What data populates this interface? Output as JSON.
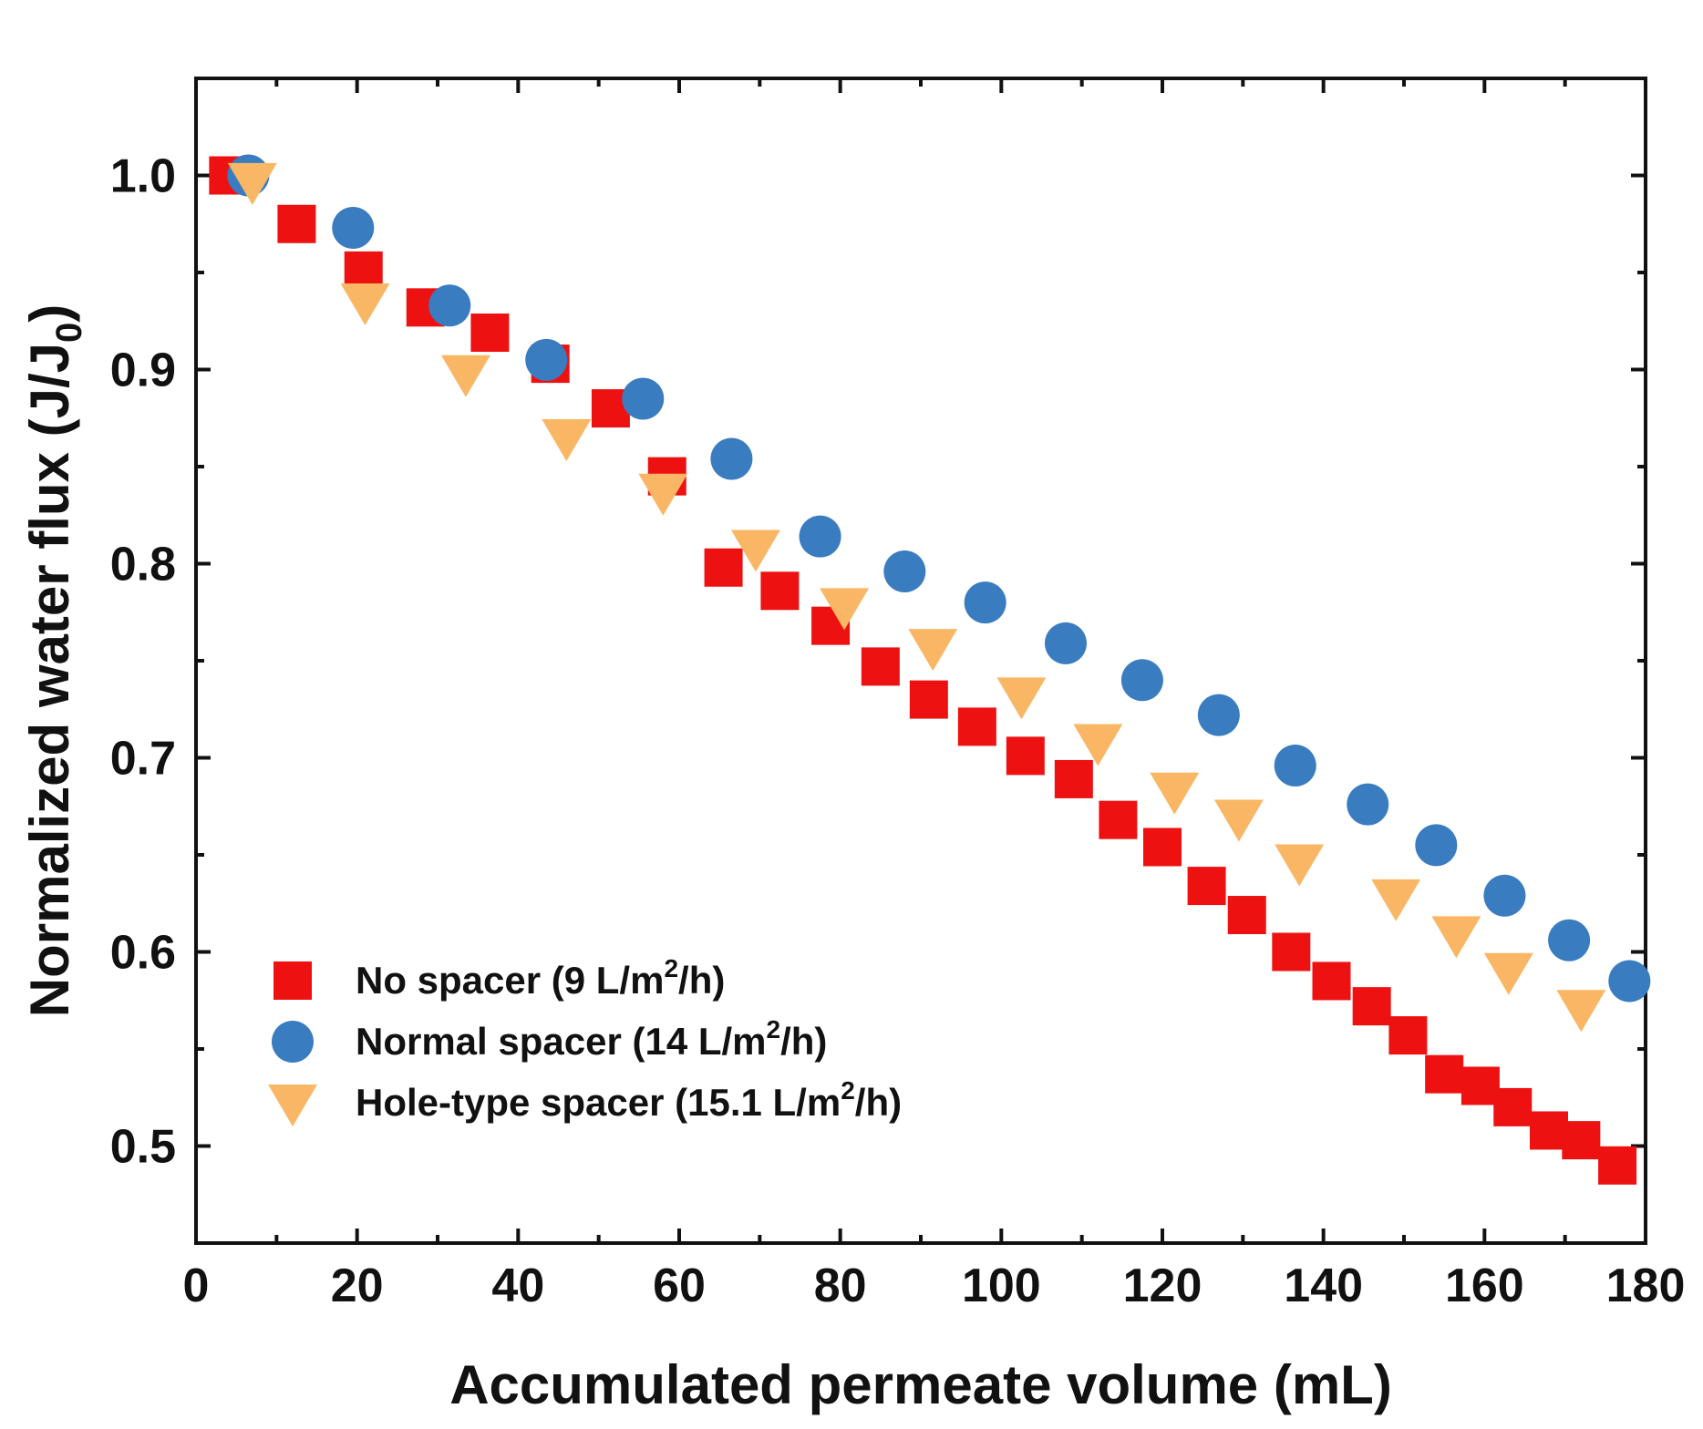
{
  "chart_data": {
    "type": "scatter",
    "xlabel": "Accumulated permeate volume (mL)",
    "ylabel": {
      "main": "Normalized water flux (J/J",
      "sub": "0",
      "close": ")"
    },
    "xlim": [
      0,
      180
    ],
    "ylim": [
      0.45,
      1.05
    ],
    "xticks": [
      0,
      20,
      40,
      60,
      80,
      100,
      120,
      140,
      160,
      180
    ],
    "xtick_labels": [
      "0",
      "20",
      "40",
      "60",
      "80",
      "100",
      "120",
      "140",
      "160",
      "180"
    ],
    "yticks": [
      0.5,
      0.6,
      0.7,
      0.8,
      0.9,
      1.0
    ],
    "ytick_labels": [
      "0.5",
      "0.6",
      "0.7",
      "0.8",
      "0.9",
      "1.0"
    ],
    "grid": false,
    "legend_position": "bottom-left",
    "series": [
      {
        "name": "No spacer (9 L/m²/h)",
        "legend": {
          "pre": "No spacer (9 L/m",
          "sup": "2",
          "post": "/h)"
        },
        "marker": "square",
        "color": "#ee1111",
        "x": [
          4,
          12.5,
          20.8,
          28.5,
          36.5,
          44,
          51.5,
          58.5,
          65.5,
          72.5,
          78.8,
          85,
          91,
          97,
          103,
          109,
          114.5,
          120,
          125.5,
          130.5,
          136,
          141,
          146,
          150.5,
          155,
          159.5,
          163.5,
          168,
          172,
          176.5
        ],
        "y": [
          1.0,
          0.975,
          0.951,
          0.932,
          0.919,
          0.903,
          0.88,
          0.845,
          0.798,
          0.786,
          0.768,
          0.747,
          0.73,
          0.716,
          0.701,
          0.689,
          0.668,
          0.654,
          0.634,
          0.619,
          0.6,
          0.585,
          0.572,
          0.557,
          0.537,
          0.531,
          0.52,
          0.508,
          0.503,
          0.49
        ]
      },
      {
        "name": "Normal spacer (14 L/m²/h)",
        "legend": {
          "pre": "Normal spacer (14 L/m",
          "sup": "2",
          "post": "/h)"
        },
        "marker": "circle",
        "color": "#3a7cc0",
        "x": [
          6.5,
          19.5,
          31.5,
          43.5,
          55.5,
          66.5,
          77.5,
          88,
          98,
          108,
          117.5,
          127,
          136.5,
          145.5,
          154,
          162.5,
          170.5,
          178
        ],
        "y": [
          1.0,
          0.973,
          0.933,
          0.905,
          0.885,
          0.854,
          0.814,
          0.796,
          0.78,
          0.759,
          0.74,
          0.722,
          0.696,
          0.676,
          0.655,
          0.629,
          0.606,
          0.585
        ]
      },
      {
        "name": "Hole-type spacer (15.1 L/m²/h)",
        "legend": {
          "pre": "Hole-type spacer (15.1 L/m",
          "sup": "2",
          "post": "/h)"
        },
        "marker": "triangle-down",
        "color": "#f9b765",
        "x": [
          7,
          21,
          33.5,
          46,
          58,
          69.5,
          80.5,
          91.5,
          102.5,
          112,
          121.5,
          129.5,
          137,
          149,
          156.5,
          163,
          172
        ],
        "y": [
          0.997,
          0.935,
          0.898,
          0.865,
          0.837,
          0.808,
          0.778,
          0.757,
          0.732,
          0.708,
          0.683,
          0.669,
          0.646,
          0.628,
          0.609,
          0.59,
          0.571
        ]
      }
    ]
  }
}
